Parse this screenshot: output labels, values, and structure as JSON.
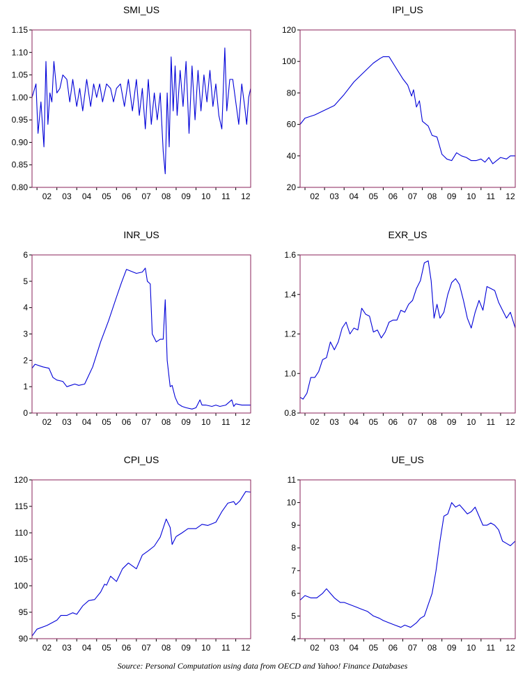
{
  "caption": "Source: Personal Computation using data from OECD and Yahoo! Finance Databases",
  "colors": {
    "line": "#0000d8",
    "frame": "#8a2258",
    "text": "#000000"
  },
  "chart_data": [
    {
      "type": "line",
      "title": "SMI_US",
      "ylim": [
        0.8,
        1.15
      ],
      "yticks": [
        0.8,
        0.85,
        0.9,
        0.95,
        1.0,
        1.05,
        1.1,
        1.15
      ],
      "ytick_labels": [
        "0.80",
        "0.85",
        "0.90",
        "0.95",
        "1.00",
        "1.05",
        "1.10",
        "1.15"
      ],
      "xticks": [
        "02",
        "03",
        "04",
        "05",
        "06",
        "07",
        "08",
        "09",
        "10",
        "11",
        "12"
      ],
      "start": 2001.75,
      "end": 2012.75,
      "x": [
        2001.75,
        2001.95,
        2002.05,
        2002.2,
        2002.35,
        2002.45,
        2002.55,
        2002.65,
        2002.75,
        2002.85,
        2003.0,
        2003.15,
        2003.3,
        2003.5,
        2003.65,
        2003.8,
        2004.0,
        2004.15,
        2004.3,
        2004.5,
        2004.7,
        2004.85,
        2005.0,
        2005.15,
        2005.3,
        2005.5,
        2005.7,
        2005.85,
        2006.0,
        2006.2,
        2006.4,
        2006.6,
        2006.8,
        2007.0,
        2007.15,
        2007.3,
        2007.45,
        2007.6,
        2007.75,
        2007.9,
        2008.05,
        2008.2,
        2008.35,
        2008.45,
        2008.55,
        2008.65,
        2008.75,
        2008.85,
        2008.95,
        2009.05,
        2009.2,
        2009.35,
        2009.5,
        2009.65,
        2009.8,
        2009.95,
        2010.1,
        2010.25,
        2010.4,
        2010.55,
        2010.7,
        2010.85,
        2011.0,
        2011.15,
        2011.3,
        2011.45,
        2011.55,
        2011.7,
        2011.85,
        2012.0,
        2012.15,
        2012.3,
        2012.45,
        2012.55,
        2012.65,
        2012.75
      ],
      "y": [
        1.0,
        1.03,
        0.92,
        0.99,
        0.89,
        1.08,
        0.94,
        1.01,
        0.99,
        1.08,
        1.01,
        1.02,
        1.05,
        1.04,
        0.99,
        1.04,
        0.98,
        1.02,
        0.97,
        1.04,
        0.98,
        1.03,
        1.0,
        1.03,
        0.99,
        1.03,
        1.02,
        0.99,
        1.02,
        1.03,
        0.98,
        1.04,
        0.97,
        1.04,
        0.96,
        1.02,
        0.93,
        1.04,
        0.94,
        1.01,
        0.95,
        1.01,
        0.88,
        0.83,
        1.01,
        0.89,
        1.09,
        0.97,
        1.07,
        0.96,
        1.06,
        0.98,
        1.08,
        0.92,
        1.07,
        0.95,
        1.06,
        0.97,
        1.05,
        0.99,
        1.06,
        0.98,
        1.03,
        0.96,
        0.93,
        1.11,
        0.97,
        1.04,
        1.04,
        0.99,
        0.94,
        1.03,
        0.98,
        0.94,
        1.0,
        1.02
      ]
    },
    {
      "type": "line",
      "title": "IPI_US",
      "ylim": [
        20,
        120
      ],
      "yticks": [
        20,
        40,
        60,
        80,
        100,
        120
      ],
      "ytick_labels": [
        "20",
        "40",
        "60",
        "80",
        "100",
        "120"
      ],
      "xticks": [
        "02",
        "03",
        "04",
        "05",
        "06",
        "07",
        "08",
        "09",
        "10",
        "11",
        "12"
      ],
      "start": 2001.75,
      "end": 2012.75,
      "x": [
        2001.75,
        2002.0,
        2002.5,
        2003.0,
        2003.5,
        2004.0,
        2004.5,
        2005.0,
        2005.5,
        2005.85,
        2006.0,
        2006.3,
        2006.6,
        2007.0,
        2007.25,
        2007.45,
        2007.55,
        2007.7,
        2007.85,
        2008.0,
        2008.3,
        2008.5,
        2008.75,
        2009.0,
        2009.25,
        2009.5,
        2009.75,
        2010.0,
        2010.25,
        2010.5,
        2010.75,
        2011.0,
        2011.2,
        2011.4,
        2011.6,
        2011.8,
        2012.0,
        2012.3,
        2012.5,
        2012.75
      ],
      "y": [
        60,
        64,
        66,
        69,
        72,
        79,
        87,
        93,
        99,
        102,
        103,
        103,
        97,
        89,
        85,
        78,
        82,
        71,
        75,
        62,
        59,
        53,
        52,
        41,
        38,
        37,
        42,
        40,
        39,
        37,
        37,
        38,
        36,
        39,
        35,
        37,
        39,
        38,
        40,
        40
      ]
    },
    {
      "type": "line",
      "title": "INR_US",
      "ylim": [
        0,
        6
      ],
      "yticks": [
        0,
        1,
        2,
        3,
        4,
        5,
        6
      ],
      "ytick_labels": [
        "0",
        "1",
        "2",
        "3",
        "4",
        "5",
        "6"
      ],
      "xticks": [
        "02",
        "03",
        "04",
        "05",
        "06",
        "07",
        "08",
        "09",
        "10",
        "11",
        "12"
      ],
      "start": 2001.75,
      "end": 2012.75,
      "x": [
        2001.75,
        2001.9,
        2002.3,
        2002.6,
        2002.8,
        2003.0,
        2003.3,
        2003.5,
        2003.7,
        2003.9,
        2004.1,
        2004.4,
        2004.8,
        2005.2,
        2005.6,
        2006.0,
        2006.25,
        2006.5,
        2007.0,
        2007.3,
        2007.45,
        2007.55,
        2007.7,
        2007.8,
        2008.0,
        2008.2,
        2008.35,
        2008.45,
        2008.55,
        2008.7,
        2008.8,
        2008.95,
        2009.1,
        2009.3,
        2009.5,
        2009.8,
        2010.0,
        2010.2,
        2010.3,
        2010.5,
        2010.8,
        2011.0,
        2011.2,
        2011.5,
        2011.8,
        2011.9,
        2012.0,
        2012.3,
        2012.75
      ],
      "y": [
        1.7,
        1.85,
        1.75,
        1.7,
        1.35,
        1.25,
        1.2,
        1.0,
        1.05,
        1.1,
        1.05,
        1.1,
        1.75,
        2.7,
        3.5,
        4.4,
        4.95,
        5.45,
        5.3,
        5.35,
        5.5,
        5.0,
        4.9,
        3.0,
        2.7,
        2.8,
        2.8,
        4.3,
        2.0,
        1.0,
        1.05,
        0.6,
        0.35,
        0.25,
        0.2,
        0.15,
        0.2,
        0.5,
        0.3,
        0.3,
        0.25,
        0.3,
        0.25,
        0.3,
        0.5,
        0.25,
        0.35,
        0.3,
        0.3
      ]
    },
    {
      "type": "line",
      "title": "EXR_US",
      "ylim": [
        0.8,
        1.6
      ],
      "yticks": [
        0.8,
        1.0,
        1.2,
        1.4,
        1.6
      ],
      "ytick_labels": [
        "0.8",
        "1.0",
        "1.2",
        "1.4",
        "1.6"
      ],
      "xticks": [
        "02",
        "03",
        "04",
        "05",
        "06",
        "07",
        "08",
        "09",
        "10",
        "11",
        "12"
      ],
      "start": 2001.75,
      "end": 2012.75,
      "x": [
        2001.75,
        2001.9,
        2002.1,
        2002.3,
        2002.5,
        2002.7,
        2002.9,
        2003.1,
        2003.3,
        2003.5,
        2003.7,
        2003.9,
        2004.1,
        2004.3,
        2004.5,
        2004.7,
        2004.9,
        2005.1,
        2005.3,
        2005.5,
        2005.7,
        2005.9,
        2006.1,
        2006.3,
        2006.5,
        2006.7,
        2006.9,
        2007.1,
        2007.3,
        2007.5,
        2007.7,
        2007.9,
        2008.1,
        2008.3,
        2008.45,
        2008.6,
        2008.75,
        2008.9,
        2009.1,
        2009.3,
        2009.5,
        2009.7,
        2009.9,
        2010.1,
        2010.3,
        2010.5,
        2010.7,
        2010.9,
        2011.1,
        2011.3,
        2011.5,
        2011.7,
        2011.9,
        2012.1,
        2012.3,
        2012.5,
        2012.75
      ],
      "y": [
        0.88,
        0.87,
        0.9,
        0.98,
        0.98,
        1.01,
        1.07,
        1.08,
        1.16,
        1.12,
        1.16,
        1.23,
        1.26,
        1.2,
        1.23,
        1.22,
        1.33,
        1.3,
        1.29,
        1.21,
        1.22,
        1.18,
        1.21,
        1.26,
        1.27,
        1.27,
        1.32,
        1.31,
        1.35,
        1.37,
        1.43,
        1.47,
        1.56,
        1.57,
        1.47,
        1.28,
        1.35,
        1.28,
        1.31,
        1.4,
        1.46,
        1.48,
        1.45,
        1.37,
        1.28,
        1.23,
        1.31,
        1.37,
        1.32,
        1.44,
        1.43,
        1.42,
        1.36,
        1.32,
        1.28,
        1.31,
        1.23
      ]
    },
    {
      "type": "line",
      "title": "CPI_US",
      "ylim": [
        90,
        120
      ],
      "yticks": [
        90,
        95,
        100,
        105,
        110,
        115,
        120
      ],
      "ytick_labels": [
        "90",
        "95",
        "100",
        "105",
        "110",
        "115",
        "120"
      ],
      "xticks": [
        "02",
        "03",
        "04",
        "05",
        "06",
        "07",
        "08",
        "09",
        "10",
        "11",
        "12"
      ],
      "start": 2001.75,
      "end": 2012.75,
      "x": [
        2001.75,
        2002.0,
        2002.5,
        2003.0,
        2003.2,
        2003.5,
        2003.8,
        2004.0,
        2004.3,
        2004.6,
        2004.9,
        2005.2,
        2005.4,
        2005.5,
        2005.7,
        2006.0,
        2006.3,
        2006.6,
        2007.0,
        2007.3,
        2007.6,
        2007.9,
        2008.2,
        2008.5,
        2008.7,
        2008.8,
        2009.0,
        2009.3,
        2009.6,
        2010.0,
        2010.3,
        2010.6,
        2011.0,
        2011.3,
        2011.6,
        2011.9,
        2012.0,
        2012.2,
        2012.5,
        2012.75
      ],
      "y": [
        90.5,
        91.8,
        92.5,
        93.5,
        94.4,
        94.4,
        94.9,
        94.6,
        96.2,
        97.2,
        97.4,
        98.8,
        100.3,
        100.1,
        101.8,
        100.8,
        103.2,
        104.3,
        103.2,
        105.8,
        106.6,
        107.5,
        109.2,
        112.6,
        111.0,
        107.8,
        109.3,
        110.0,
        110.8,
        110.8,
        111.6,
        111.4,
        112.0,
        114.0,
        115.6,
        115.9,
        115.3,
        116.0,
        117.8,
        117.7
      ]
    },
    {
      "type": "line",
      "title": "UE_US",
      "ylim": [
        4,
        11
      ],
      "yticks": [
        4,
        5,
        6,
        7,
        8,
        9,
        10,
        11
      ],
      "ytick_labels": [
        "4",
        "5",
        "6",
        "7",
        "8",
        "9",
        "10",
        "11"
      ],
      "xticks": [
        "02",
        "03",
        "04",
        "05",
        "06",
        "07",
        "08",
        "09",
        "10",
        "11",
        "12"
      ],
      "start": 2001.75,
      "end": 2012.75,
      "x": [
        2001.75,
        2002.0,
        2002.3,
        2002.6,
        2002.9,
        2003.1,
        2003.3,
        2003.5,
        2003.8,
        2004.0,
        2004.3,
        2004.6,
        2004.9,
        2005.2,
        2005.5,
        2005.8,
        2006.0,
        2006.3,
        2006.6,
        2006.9,
        2007.1,
        2007.4,
        2007.7,
        2007.9,
        2008.1,
        2008.3,
        2008.5,
        2008.7,
        2008.9,
        2009.1,
        2009.3,
        2009.5,
        2009.7,
        2009.9,
        2010.1,
        2010.3,
        2010.5,
        2010.7,
        2010.9,
        2011.1,
        2011.3,
        2011.5,
        2011.7,
        2011.9,
        2012.1,
        2012.3,
        2012.5,
        2012.75
      ],
      "y": [
        5.7,
        5.9,
        5.8,
        5.8,
        6.0,
        6.2,
        6.0,
        5.8,
        5.6,
        5.6,
        5.5,
        5.4,
        5.3,
        5.2,
        5.0,
        4.9,
        4.8,
        4.7,
        4.6,
        4.5,
        4.6,
        4.5,
        4.7,
        4.9,
        5.0,
        5.5,
        6.0,
        7.0,
        8.3,
        9.4,
        9.5,
        10.0,
        9.8,
        9.9,
        9.7,
        9.5,
        9.6,
        9.8,
        9.4,
        9.0,
        9.0,
        9.1,
        9.0,
        8.8,
        8.3,
        8.2,
        8.1,
        8.3
      ]
    }
  ]
}
